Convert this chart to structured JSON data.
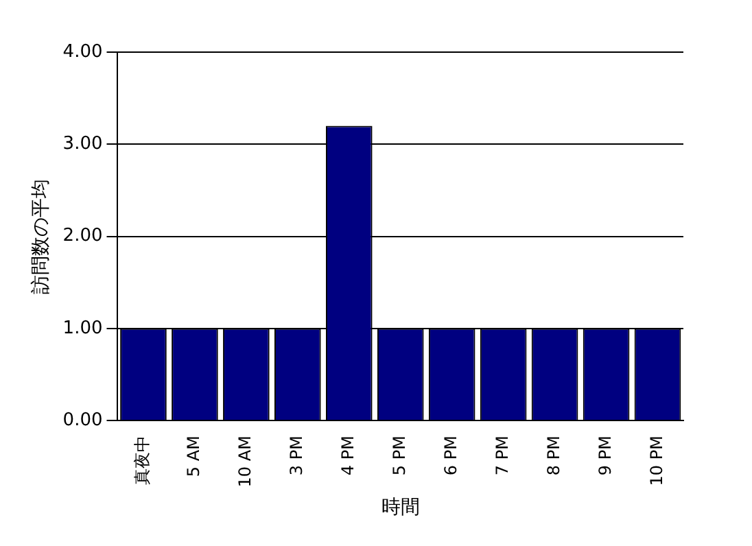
{
  "chart_data": {
    "type": "bar",
    "xlabel": "時間",
    "ylabel": "訪問数の平均",
    "categories": [
      "真夜中",
      "5 AM",
      "10 AM",
      "3 PM",
      "4 PM",
      "5 PM",
      "6 PM",
      "7 PM",
      "8 PM",
      "9 PM",
      "10 PM"
    ],
    "series": [
      {
        "color": "#000080",
        "values": [
          1,
          1,
          1,
          1,
          3.2,
          1,
          1,
          1,
          1,
          1,
          1
        ]
      }
    ],
    "ylim": [
      0,
      4
    ],
    "yticks": [
      {
        "value": 0,
        "label": "0.00"
      },
      {
        "value": 1,
        "label": "1.00"
      },
      {
        "value": 2,
        "label": "2.00"
      },
      {
        "value": 3,
        "label": "3.00"
      },
      {
        "value": 4,
        "label": "4.00"
      }
    ],
    "grid": "y"
  }
}
